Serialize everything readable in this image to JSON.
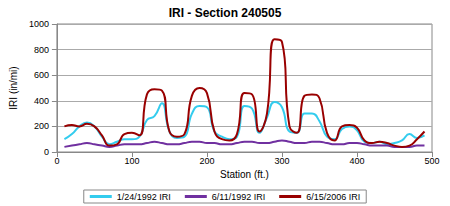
{
  "chart_data": {
    "type": "line",
    "title": "IRI - Section 240505",
    "x_label": "Station (ft.)",
    "y_label": "IRI (in/mi)",
    "x": [
      10,
      20,
      30,
      40,
      50,
      60,
      70,
      80,
      90,
      100,
      110,
      120,
      130,
      140,
      150,
      160,
      170,
      180,
      190,
      200,
      210,
      220,
      230,
      240,
      250,
      260,
      270,
      280,
      290,
      300,
      310,
      320,
      330,
      340,
      350,
      360,
      370,
      380,
      390,
      400,
      410,
      420,
      430,
      440,
      450,
      460,
      470,
      480,
      490
    ],
    "series": [
      {
        "name": "1/24/1992 IRI",
        "color": "#33ccee",
        "values": [
          100,
          140,
          200,
          230,
          200,
          120,
          60,
          80,
          100,
          100,
          120,
          250,
          280,
          380,
          160,
          110,
          120,
          300,
          360,
          350,
          160,
          120,
          100,
          120,
          360,
          340,
          150,
          270,
          390,
          350,
          160,
          150,
          300,
          300,
          240,
          120,
          100,
          180,
          200,
          170,
          80,
          70,
          80,
          60,
          70,
          90,
          140,
          110,
          130
        ]
      },
      {
        "name": "6/11/1992 IRI",
        "color": "#7030a0",
        "values": [
          40,
          50,
          60,
          70,
          60,
          50,
          40,
          50,
          60,
          60,
          60,
          70,
          80,
          70,
          60,
          60,
          70,
          80,
          80,
          70,
          70,
          60,
          60,
          70,
          80,
          80,
          70,
          70,
          80,
          90,
          80,
          70,
          70,
          80,
          80,
          70,
          60,
          60,
          70,
          70,
          60,
          50,
          50,
          50,
          40,
          40,
          40,
          50,
          50
        ]
      },
      {
        "name": "6/15/2006 IRI",
        "color": "#990000",
        "values": [
          200,
          210,
          200,
          220,
          200,
          130,
          50,
          60,
          140,
          150,
          130,
          450,
          490,
          480,
          160,
          120,
          140,
          440,
          500,
          460,
          160,
          100,
          90,
          140,
          460,
          450,
          160,
          300,
          880,
          860,
          200,
          150,
          440,
          450,
          420,
          150,
          90,
          200,
          210,
          190,
          90,
          70,
          80,
          70,
          50,
          40,
          50,
          100,
          160
        ]
      }
    ],
    "xlim": [
      0,
      500
    ],
    "xticks": [
      0,
      100,
      200,
      300,
      400,
      500
    ],
    "ylim": [
      0,
      1000
    ],
    "yticks": [
      0,
      200,
      400,
      600,
      800,
      1000
    ],
    "grid": true,
    "legend": "bottom"
  }
}
